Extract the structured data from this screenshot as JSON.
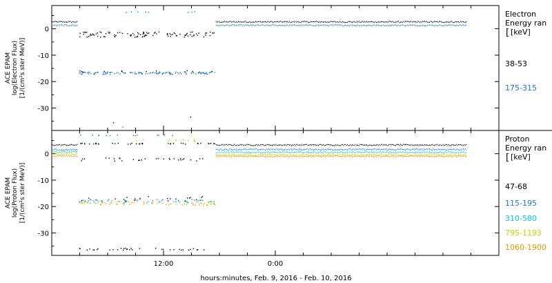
{
  "x_axis_title": "hours:minutes, Feb.  9, 2016 - Feb. 10, 2016",
  "x_tick_labels": [
    "12:00",
    "0:00"
  ],
  "chart_data": [
    {
      "type": "scatter",
      "name": "electron-panel",
      "ylabel_lines": [
        "ACE EPAM",
        "log(Electron Flux)",
        "[1/(cm²s ster MeV)]"
      ],
      "legend_title": [
        "Electron",
        "Energy ran",
        "[keV]"
      ],
      "y_ticks": [
        0,
        -10,
        -20,
        -30
      ],
      "ylim": [
        -38.5,
        8.8
      ],
      "xlim_hours": [
        0,
        48
      ],
      "series": [
        {
          "name": "38-53",
          "color": "#000000",
          "gap": [
            {
              "x": [
                2.9,
                17.5
              ],
              "y": -2.2,
              "jitter": 1.0,
              "n": 105
            },
            {
              "x": [
                2.9,
                17.5
              ],
              "y": -16.3,
              "jitter": 0.5,
              "n": 20
            },
            {
              "x": [
                6.5,
                6.6
              ],
              "y": -35.5,
              "jitter": 0.1,
              "n": 1
            },
            {
              "x": [
                14.8,
                14.9
              ],
              "y": -33.5,
              "jitter": 0.1,
              "n": 1
            }
          ],
          "continuous": [
            {
              "x": [
                0,
                2.8
              ],
              "y": 2.6
            },
            {
              "x": [
                17.6,
                44.5
              ],
              "y": 2.6
            }
          ]
        },
        {
          "name": "175-315",
          "color": "#1a78d2",
          "gap": [
            {
              "x": [
                2.9,
                17.5
              ],
              "y": -16.8,
              "jitter": 0.5,
              "n": 120
            },
            {
              "x": [
                5.6,
                15.6
              ],
              "y": 6.3,
              "jitter": 0.2,
              "n": 8
            },
            {
              "x": [
                7.5,
                7.6
              ],
              "y": -37.2,
              "jitter": 0.1,
              "n": 1
            }
          ],
          "continuous": [
            {
              "x": [
                0,
                2.8
              ],
              "y": 1.3
            },
            {
              "x": [
                17.6,
                44.5
              ],
              "y": 1.3
            }
          ]
        }
      ]
    },
    {
      "type": "scatter",
      "name": "proton-panel",
      "ylabel_lines": [
        "ACE EPAM",
        "log(Proton Flux)",
        "[1/(cm²s ster MeV)]"
      ],
      "legend_title": [
        "Proton",
        "Energy ran",
        "[keV]"
      ],
      "y_ticks": [
        0,
        -10,
        -20,
        -30
      ],
      "ylim": [
        -38.5,
        8.8
      ],
      "xlim_hours": [
        0,
        48
      ],
      "series": [
        {
          "name": "47-68",
          "color": "#000000",
          "gap": [
            {
              "x": [
                2.9,
                17.5
              ],
              "y": -2.2,
              "jitter": 0.6,
              "n": 30
            },
            {
              "x": [
                2.9,
                17.5
              ],
              "y": -17.2,
              "jitter": 1.0,
              "n": 20
            },
            {
              "x": [
                2.9,
                17.5
              ],
              "y": -36.2,
              "jitter": 0.4,
              "n": 35
            },
            {
              "x": [
                2.9,
                17.5
              ],
              "y": 3.8,
              "jitter": 0.2,
              "n": 40
            }
          ],
          "continuous": [
            {
              "x": [
                0,
                2.8
              ],
              "y": 3.3
            },
            {
              "x": [
                17.6,
                44.5
              ],
              "y": 3.3
            }
          ]
        },
        {
          "name": "115-195",
          "color": "#1a78d2",
          "gap": [
            {
              "x": [
                2.9,
                17.5
              ],
              "y": -17.8,
              "jitter": 0.5,
              "n": 35
            },
            {
              "x": [
                2.9,
                14.0
              ],
              "y": 7.0,
              "jitter": 0.2,
              "n": 14
            }
          ],
          "continuous": [
            {
              "x": [
                0,
                2.8
              ],
              "y": 1.5
            },
            {
              "x": [
                17.6,
                44.5
              ],
              "y": 1.6
            }
          ]
        },
        {
          "name": "310-580",
          "color": "#00c8dc",
          "gap": [
            {
              "x": [
                2.9,
                17.5
              ],
              "y": -18.3,
              "jitter": 0.5,
              "n": 35
            }
          ],
          "continuous": [
            {
              "x": [
                0,
                2.8
              ],
              "y": 0.7
            },
            {
              "x": [
                17.6,
                44.5
              ],
              "y": 0.5
            }
          ]
        },
        {
          "name": "795-1193",
          "color": "#c8d200",
          "gap": [
            {
              "x": [
                2.9,
                17.5
              ],
              "y": -18.6,
              "jitter": 0.6,
              "n": 35
            },
            {
              "x": [
                9.0,
                15.5
              ],
              "y": 5.0,
              "jitter": 0.3,
              "n": 12
            }
          ],
          "continuous": [
            {
              "x": [
                0,
                2.8
              ],
              "y": -0.2
            },
            {
              "x": [
                17.6,
                44.5
              ],
              "y": -0.5
            }
          ]
        },
        {
          "name": "1060-1900",
          "color": "#e69600",
          "gap": [
            {
              "x": [
                2.9,
                17.5
              ],
              "y": -18.9,
              "jitter": 0.6,
              "n": 35
            }
          ],
          "continuous": [
            {
              "x": [
                0,
                2.8
              ],
              "y": -0.9
            },
            {
              "x": [
                17.6,
                44.5
              ],
              "y": -1.0
            }
          ]
        }
      ]
    }
  ]
}
